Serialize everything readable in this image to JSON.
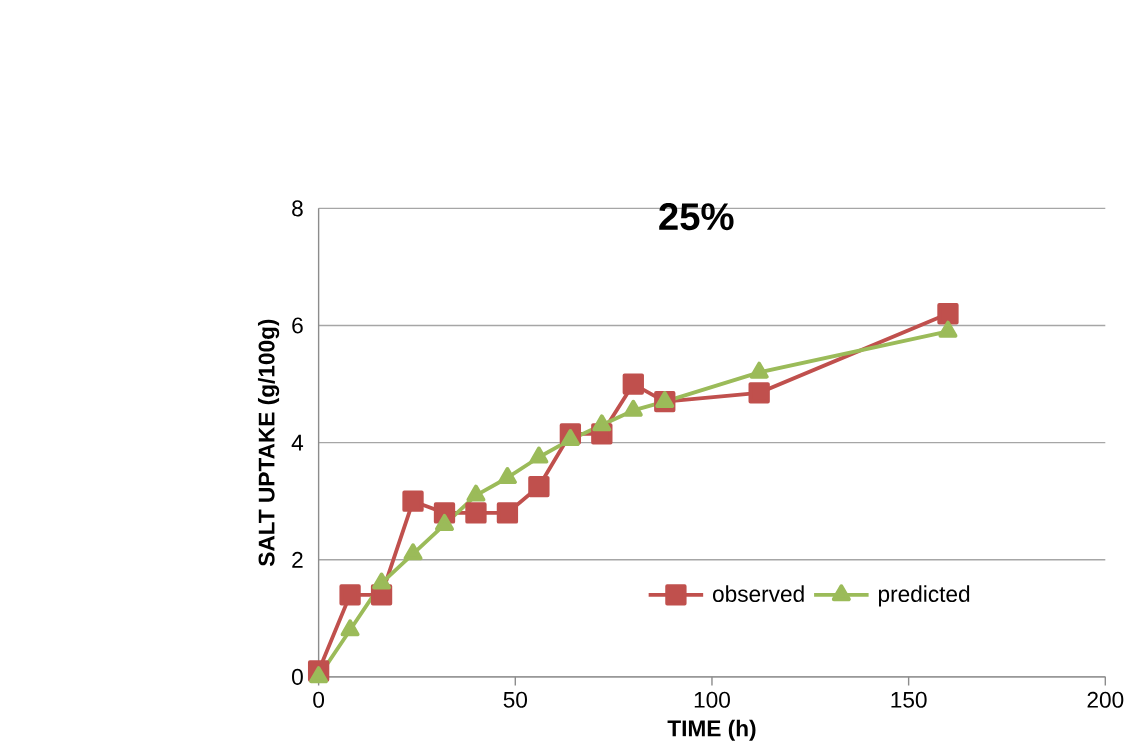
{
  "chart_data": {
    "type": "line",
    "title": "25%",
    "xlabel": "TIME (h)",
    "ylabel": "SALT UPTAKE (g/100g)",
    "x": [
      0,
      8,
      16,
      24,
      32,
      40,
      48,
      56,
      64,
      72,
      80,
      88,
      112,
      160
    ],
    "series": [
      {
        "name": "observed",
        "color": "#c0504d",
        "marker": "square",
        "values": [
          0.1,
          1.4,
          1.4,
          3.0,
          2.8,
          2.8,
          2.8,
          3.25,
          4.15,
          4.15,
          5.0,
          4.7,
          4.85,
          6.2
        ]
      },
      {
        "name": "predicted",
        "color": "#9bbb59",
        "marker": "triangle",
        "values": [
          0.0,
          0.8,
          1.6,
          2.1,
          2.6,
          3.1,
          3.4,
          3.75,
          4.05,
          4.3,
          4.55,
          4.7,
          5.2,
          5.9
        ]
      }
    ],
    "xlim": [
      0,
      200
    ],
    "ylim": [
      0,
      8
    ],
    "xticks": [
      0,
      50,
      100,
      150,
      200
    ],
    "yticks": [
      0,
      2,
      4,
      6,
      8
    ],
    "grid": "y",
    "legend": "bottom right"
  }
}
